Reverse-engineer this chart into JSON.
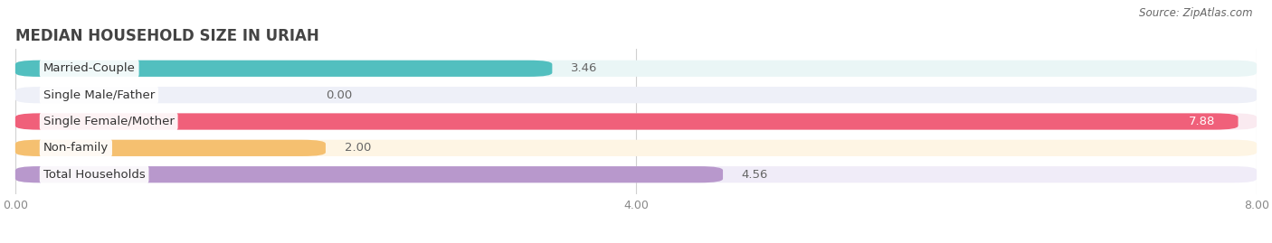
{
  "title": "MEDIAN HOUSEHOLD SIZE IN URIAH",
  "source": "Source: ZipAtlas.com",
  "categories": [
    "Married-Couple",
    "Single Male/Father",
    "Single Female/Mother",
    "Non-family",
    "Total Households"
  ],
  "values": [
    3.46,
    0.0,
    7.88,
    2.0,
    4.56
  ],
  "bar_colors": [
    "#52bfbf",
    "#a0b0e0",
    "#f0607a",
    "#f5c070",
    "#b898cc"
  ],
  "bar_bg_colors": [
    "#eaf6f6",
    "#eef0f8",
    "#faeaf0",
    "#fef5e4",
    "#f0ecf8"
  ],
  "xlim": [
    0,
    8.0
  ],
  "xticks": [
    0.0,
    4.0,
    8.0
  ],
  "xtick_labels": [
    "0.00",
    "4.00",
    "8.00"
  ],
  "value_label_color": "#666666",
  "title_color": "#444444",
  "background_color": "#ffffff",
  "bar_height": 0.62,
  "label_fontsize": 9.5,
  "title_fontsize": 12,
  "value_fontsize": 9.5,
  "source_fontsize": 8.5
}
